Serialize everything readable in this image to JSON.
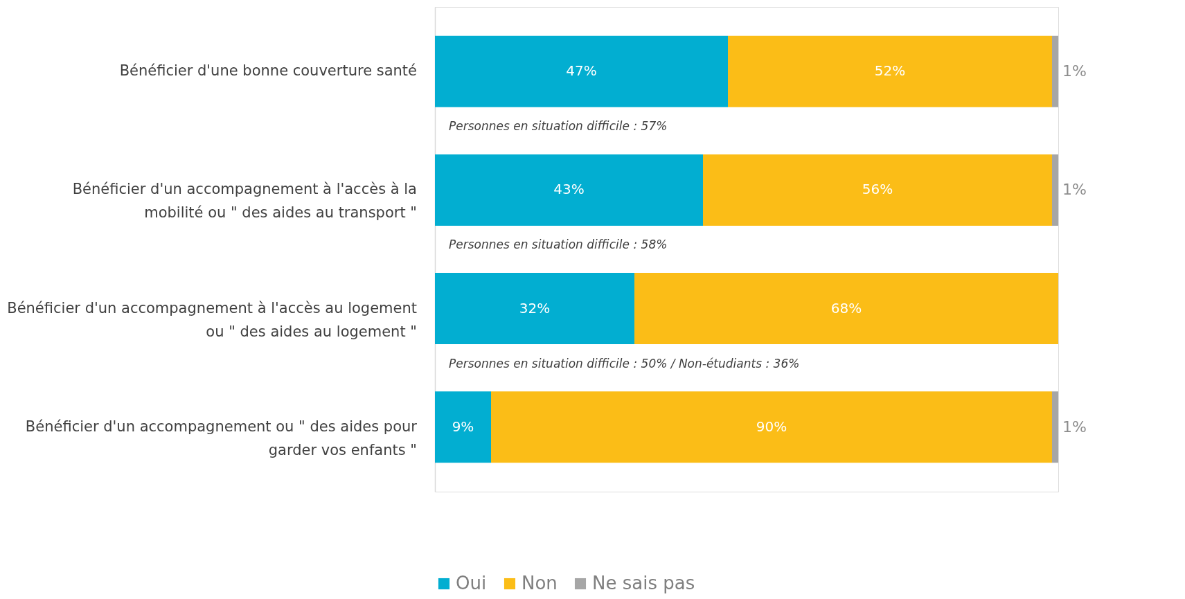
{
  "chart_data": {
    "type": "bar",
    "orientation": "horizontal",
    "stacked": true,
    "legend": "bottom",
    "categories": [
      "Bénéficier d'une bonne couverture santé",
      "Bénéficier d'un accompagnement à l'accès à la mobilité ou \" des aides au transport \"",
      "Bénéficier d'un accompagnement à l'accès au logement ou \" des aides au logement \"",
      "Bénéficier d'un accompagnement ou \" des aides pour garder vos enfants \""
    ],
    "series": [
      {
        "name": "Oui",
        "color": "#02aed1",
        "values": [
          47,
          43,
          32,
          9
        ],
        "value_labels": [
          "47%",
          "43%",
          "32%",
          "9%"
        ]
      },
      {
        "name": "Non",
        "color": "#fbbd17",
        "values": [
          52,
          56,
          68,
          90
        ],
        "value_labels": [
          "52%",
          "56%",
          "68%",
          "90%"
        ]
      },
      {
        "name": "Ne sais pas",
        "color": "#a6a6a6",
        "values": [
          1,
          1,
          null,
          1
        ],
        "value_labels": [
          "1%",
          "1%",
          null,
          "1%"
        ]
      }
    ],
    "annotations": [
      "Personnes en situation difficile :  57%",
      "Personnes en situation difficile : 58%",
      "Personnes en situation difficile : 50% / Non-étudiants : 36%"
    ]
  }
}
